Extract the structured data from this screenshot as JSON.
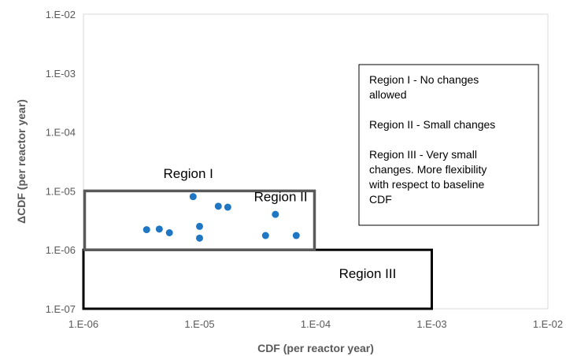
{
  "chart_data": {
    "type": "scatter",
    "xlabel": "CDF (per reactor year)",
    "ylabel": "ΔCDF (per reactor year)",
    "xscale": "log",
    "yscale": "log",
    "xlim": [
      1e-06,
      0.01
    ],
    "ylim": [
      1e-07,
      0.01
    ],
    "x_ticks": [
      1e-06,
      1e-05,
      0.0001,
      0.001,
      0.01
    ],
    "y_ticks": [
      1e-07,
      1e-06,
      1e-05,
      0.0001,
      0.001,
      0.01
    ],
    "x_tick_labels": [
      "1.E-06",
      "1.E-05",
      "1.E-04",
      "1.E-03",
      "1.E-02"
    ],
    "y_tick_labels": [
      "1.E-07",
      "1.E-06",
      "1.E-05",
      "1.E-04",
      "1.E-03",
      "1.E-02"
    ],
    "grid": false,
    "marker_color": "#1f77c4",
    "points": [
      {
        "x": 3.5e-06,
        "y": 2.2e-06
      },
      {
        "x": 4.5e-06,
        "y": 2.25e-06
      },
      {
        "x": 5.5e-06,
        "y": 1.95e-06
      },
      {
        "x": 8.8e-06,
        "y": 8e-06
      },
      {
        "x": 1e-05,
        "y": 2.5e-06
      },
      {
        "x": 1e-05,
        "y": 1.58e-06
      },
      {
        "x": 1.45e-05,
        "y": 5.5e-06
      },
      {
        "x": 1.75e-05,
        "y": 5.3e-06
      },
      {
        "x": 3.7e-05,
        "y": 1.75e-06
      },
      {
        "x": 4.5e-05,
        "y": 4e-06
      },
      {
        "x": 6.8e-05,
        "y": 1.75e-06
      }
    ],
    "regions": [
      {
        "name": "Region I",
        "label": "Region I",
        "label_at": {
          "x": 8e-06,
          "y": 2e-05
        }
      },
      {
        "name": "Region II",
        "label": "Region II",
        "x_range": [
          1e-06,
          0.0001
        ],
        "y_range": [
          1e-06,
          1e-05
        ],
        "border_color": "#595959",
        "label_at": {
          "x": 5e-05,
          "y": 8e-06
        }
      },
      {
        "name": "Region III",
        "label": "Region III",
        "x_range": [
          1e-06,
          0.001
        ],
        "y_range": [
          1e-07,
          1e-06
        ],
        "border_color": "#000000",
        "label_at": {
          "x": 0.00028,
          "y": 4e-07
        }
      }
    ],
    "legend_box": {
      "placement": "top-right",
      "lines": [
        "Region I - No changes",
        "allowed",
        "",
        "Region II - Small changes",
        "",
        "Region III - Very small",
        "changes. More flexibility",
        "with respect to baseline",
        "CDF"
      ]
    }
  }
}
